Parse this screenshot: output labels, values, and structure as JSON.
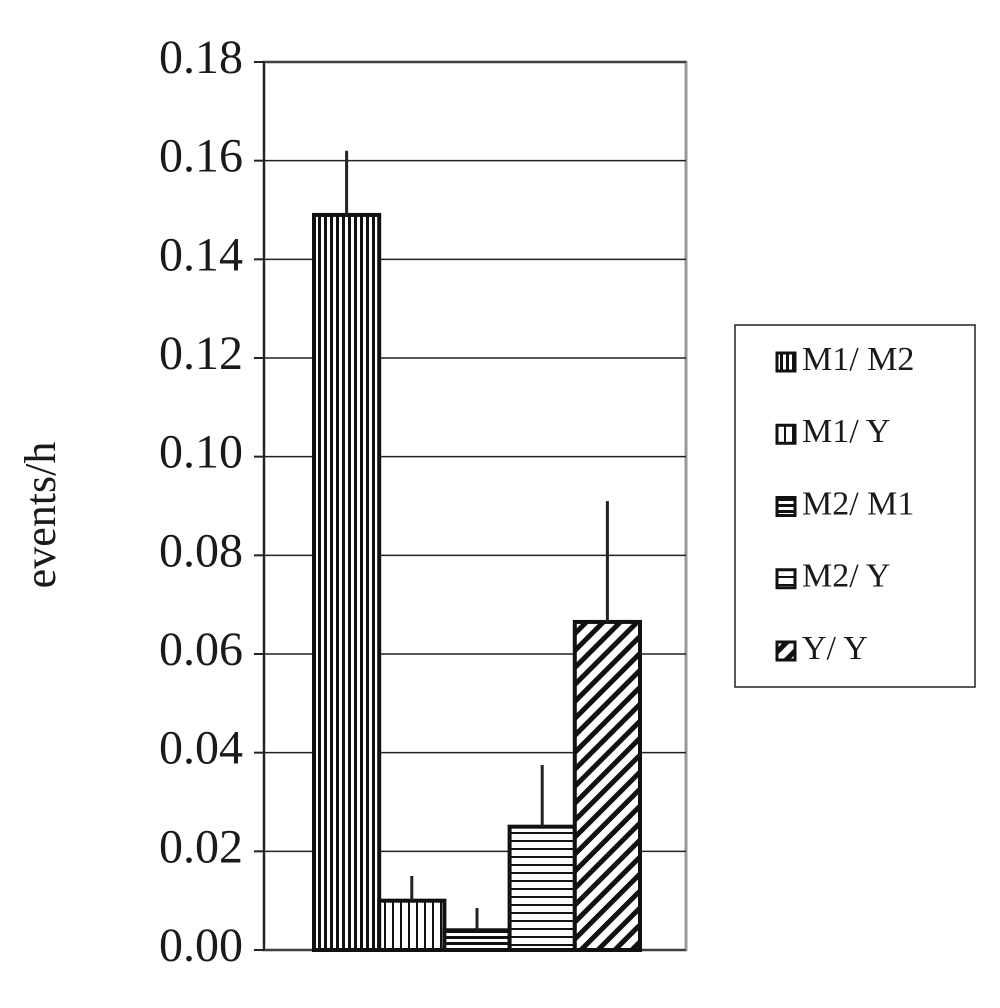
{
  "chart_data": {
    "type": "bar",
    "y_label": "events/h",
    "categories": [
      null
    ],
    "series": [
      {
        "name": "M1/ M2",
        "values": [
          0.149
        ],
        "errors": [
          0.013
        ]
      },
      {
        "name": "M1/ Y",
        "values": [
          0.01
        ],
        "errors": [
          0.005
        ]
      },
      {
        "name": "M2/ M1",
        "values": [
          0.004
        ],
        "errors": [
          0.0045
        ]
      },
      {
        "name": "M2/ Y",
        "values": [
          0.025
        ],
        "errors": [
          0.0125
        ]
      },
      {
        "name": "Y/ Y",
        "values": [
          0.0665
        ],
        "errors": [
          0.0245
        ]
      }
    ],
    "ylim": [
      0,
      0.18
    ],
    "yticks": [
      {
        "value": 0,
        "label": "0.00"
      },
      0.02,
      0.04,
      0.06,
      0.08,
      {
        "value": 0.1,
        "label": "0.10"
      },
      0.12,
      0.14,
      0.16,
      0.18
    ],
    "grid": true
  }
}
